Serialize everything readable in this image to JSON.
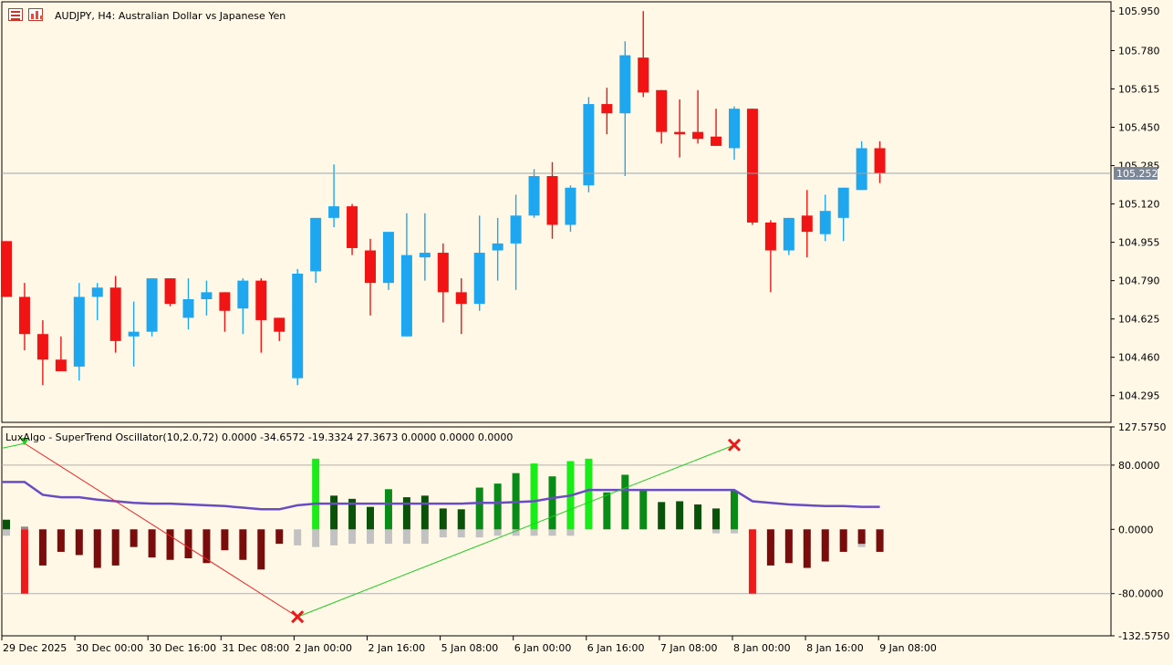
{
  "header": {
    "symbol_label": "AUDJPY, H4:",
    "description": "Australian Dollar vs Japanese Yen",
    "icons": [
      "symbol-list-icon",
      "chart-type-icon"
    ]
  },
  "price_axis": {
    "labels": [
      "105.950",
      "105.780",
      "105.615",
      "105.450",
      "105.285",
      "105.120",
      "104.955",
      "104.790",
      "104.625",
      "104.460",
      "104.295"
    ],
    "current_price": "105.252",
    "current_price_bg": "#7b8796"
  },
  "indicator": {
    "title": "LuxAlgo - SuperTrend Oscillator(10,2.0,72) 0.0000 -34.6572 -19.3324 27.3673 0.0000 0.0000 0.0000",
    "axis_labels": [
      "127.5750",
      "80.0000",
      "0.0000",
      "-80.0000",
      "-132.5750"
    ]
  },
  "time_axis": {
    "labels": [
      "29 Dec 2025",
      "30 Dec 00:00",
      "30 Dec 16:00",
      "31 Dec 08:00",
      "2 Jan 00:00",
      "2 Jan 16:00",
      "5 Jan 08:00",
      "6 Jan 00:00",
      "6 Jan 16:00",
      "7 Jan 08:00",
      "8 Jan 00:00",
      "8 Jan 16:00",
      "9 Jan 08:00"
    ]
  },
  "colors": {
    "bull": "#1ea7ef",
    "bear": "#f01414",
    "background": "#fff8e7",
    "supertrend_line": "#6a4cc1",
    "osc_bright_green": "#19ec19",
    "osc_green": "#0a8a16",
    "osc_dark_green": "#0a520a",
    "osc_bright_red": "#ec1c1c",
    "osc_dark_red": "#7a0c0c",
    "osc_gray": "#c2c2c2"
  },
  "chart_data": [
    {
      "type": "candlestick",
      "title": "AUDJPY, H4: Australian Dollar vs Japanese Yen",
      "ylim": [
        104.18,
        105.99
      ],
      "candles": [
        {
          "o": 104.96,
          "h": 104.96,
          "l": 104.72,
          "c": 104.72
        },
        {
          "o": 104.72,
          "h": 104.78,
          "l": 104.49,
          "c": 104.56
        },
        {
          "o": 104.56,
          "h": 104.62,
          "l": 104.34,
          "c": 104.45
        },
        {
          "o": 104.45,
          "h": 104.55,
          "l": 104.41,
          "c": 104.4
        },
        {
          "o": 104.42,
          "h": 104.78,
          "l": 104.36,
          "c": 104.72
        },
        {
          "o": 104.72,
          "h": 104.78,
          "l": 104.62,
          "c": 104.76
        },
        {
          "o": 104.76,
          "h": 104.81,
          "l": 104.48,
          "c": 104.53
        },
        {
          "o": 104.55,
          "h": 104.7,
          "l": 104.42,
          "c": 104.57
        },
        {
          "o": 104.57,
          "h": 104.79,
          "l": 104.55,
          "c": 104.8
        },
        {
          "o": 104.8,
          "h": 104.8,
          "l": 104.68,
          "c": 104.69
        },
        {
          "o": 104.63,
          "h": 104.8,
          "l": 104.58,
          "c": 104.71
        },
        {
          "o": 104.71,
          "h": 104.79,
          "l": 104.64,
          "c": 104.74
        },
        {
          "o": 104.74,
          "h": 104.74,
          "l": 104.57,
          "c": 104.66
        },
        {
          "o": 104.67,
          "h": 104.8,
          "l": 104.56,
          "c": 104.79
        },
        {
          "o": 104.79,
          "h": 104.8,
          "l": 104.48,
          "c": 104.62
        },
        {
          "o": 104.63,
          "h": 104.63,
          "l": 104.53,
          "c": 104.57
        },
        {
          "o": 104.37,
          "h": 104.84,
          "l": 104.34,
          "c": 104.82
        },
        {
          "o": 104.83,
          "h": 105.06,
          "l": 104.78,
          "c": 105.06
        },
        {
          "o": 105.06,
          "h": 105.29,
          "l": 105.02,
          "c": 105.11
        },
        {
          "o": 105.11,
          "h": 105.12,
          "l": 104.9,
          "c": 104.93
        },
        {
          "o": 104.92,
          "h": 104.97,
          "l": 104.64,
          "c": 104.78
        },
        {
          "o": 104.78,
          "h": 104.99,
          "l": 104.75,
          "c": 105.0
        },
        {
          "o": 104.55,
          "h": 105.08,
          "l": 104.55,
          "c": 104.9
        },
        {
          "o": 104.89,
          "h": 105.08,
          "l": 104.79,
          "c": 104.91
        },
        {
          "o": 104.91,
          "h": 104.95,
          "l": 104.61,
          "c": 104.74
        },
        {
          "o": 104.74,
          "h": 104.8,
          "l": 104.56,
          "c": 104.69
        },
        {
          "o": 104.69,
          "h": 105.07,
          "l": 104.66,
          "c": 104.91
        },
        {
          "o": 104.92,
          "h": 105.06,
          "l": 104.79,
          "c": 104.95
        },
        {
          "o": 104.95,
          "h": 105.16,
          "l": 104.75,
          "c": 105.07
        },
        {
          "o": 105.07,
          "h": 105.27,
          "l": 105.06,
          "c": 105.24
        },
        {
          "o": 105.24,
          "h": 105.3,
          "l": 104.97,
          "c": 105.03
        },
        {
          "o": 105.03,
          "h": 105.2,
          "l": 105.0,
          "c": 105.19
        },
        {
          "o": 105.2,
          "h": 105.58,
          "l": 105.17,
          "c": 105.55
        },
        {
          "o": 105.55,
          "h": 105.62,
          "l": 105.42,
          "c": 105.51
        },
        {
          "o": 105.51,
          "h": 105.82,
          "l": 105.24,
          "c": 105.76
        },
        {
          "o": 105.75,
          "h": 105.95,
          "l": 105.58,
          "c": 105.6
        },
        {
          "o": 105.61,
          "h": 105.61,
          "l": 105.38,
          "c": 105.43
        },
        {
          "o": 105.43,
          "h": 105.57,
          "l": 105.32,
          "c": 105.42
        },
        {
          "o": 105.43,
          "h": 105.61,
          "l": 105.38,
          "c": 105.4
        },
        {
          "o": 105.41,
          "h": 105.53,
          "l": 105.37,
          "c": 105.37
        },
        {
          "o": 105.36,
          "h": 105.54,
          "l": 105.31,
          "c": 105.53
        },
        {
          "o": 105.53,
          "h": 105.53,
          "l": 105.03,
          "c": 105.04
        },
        {
          "o": 105.04,
          "h": 105.05,
          "l": 104.74,
          "c": 104.92
        },
        {
          "o": 104.92,
          "h": 105.06,
          "l": 104.9,
          "c": 105.06
        },
        {
          "o": 105.07,
          "h": 105.18,
          "l": 104.89,
          "c": 105.0
        },
        {
          "o": 104.99,
          "h": 105.16,
          "l": 104.96,
          "c": 105.09
        },
        {
          "o": 105.06,
          "h": 105.19,
          "l": 104.96,
          "c": 105.19
        },
        {
          "o": 105.18,
          "h": 105.39,
          "l": 105.18,
          "c": 105.36
        },
        {
          "o": 105.36,
          "h": 105.39,
          "l": 105.21,
          "c": 105.25
        }
      ],
      "current_price": 105.252
    },
    {
      "type": "bar",
      "title": "LuxAlgo - SuperTrend Oscillator(10,2.0,72)",
      "ylim": [
        -132.575,
        127.575
      ],
      "values": [
        12,
        -80,
        -45,
        -28,
        -32,
        -48,
        -45,
        -22,
        -35,
        -38,
        -36,
        -42,
        -26,
        -38,
        -50,
        -18,
        0,
        88,
        42,
        38,
        28,
        50,
        40,
        42,
        26,
        25,
        52,
        57,
        70,
        82,
        66,
        85,
        88,
        46,
        68,
        50,
        34,
        35,
        31,
        26,
        48,
        -80,
        -45,
        -42,
        -48,
        -40,
        -28,
        -18,
        -28
      ],
      "gray_values": [
        -8,
        0,
        -12,
        -10,
        -12,
        -10,
        -12,
        -14,
        -14,
        -12,
        -16,
        -14,
        -16,
        -14,
        -14,
        -10,
        -20,
        -22,
        -20,
        -18,
        -18,
        -18,
        -18,
        -18,
        -10,
        -10,
        -10,
        -8,
        -8,
        -8,
        -8,
        -8,
        0,
        0,
        0,
        0,
        0,
        0,
        0,
        -5,
        -5,
        -5,
        -22,
        -22,
        -22,
        -22,
        -22,
        -22,
        -18
      ],
      "supertrend_line": [
        59,
        59,
        43,
        40,
        40,
        37,
        35,
        33,
        32,
        32,
        31,
        30,
        29,
        27,
        25,
        25,
        30,
        32,
        32,
        32,
        32,
        32,
        32,
        32,
        32,
        32,
        33,
        33,
        34,
        35,
        39,
        42,
        49,
        49,
        49,
        49,
        49,
        49,
        49,
        49,
        49,
        35,
        33,
        31,
        30,
        29,
        29,
        28,
        28
      ],
      "signals": [
        {
          "kind": "buy-triangle",
          "index": 1,
          "value": 107
        },
        {
          "kind": "cross",
          "index": 16,
          "value": -109
        },
        {
          "kind": "cross",
          "index": 40,
          "value": 105
        }
      ],
      "reference_levels": [
        80,
        0,
        -80
      ]
    }
  ]
}
